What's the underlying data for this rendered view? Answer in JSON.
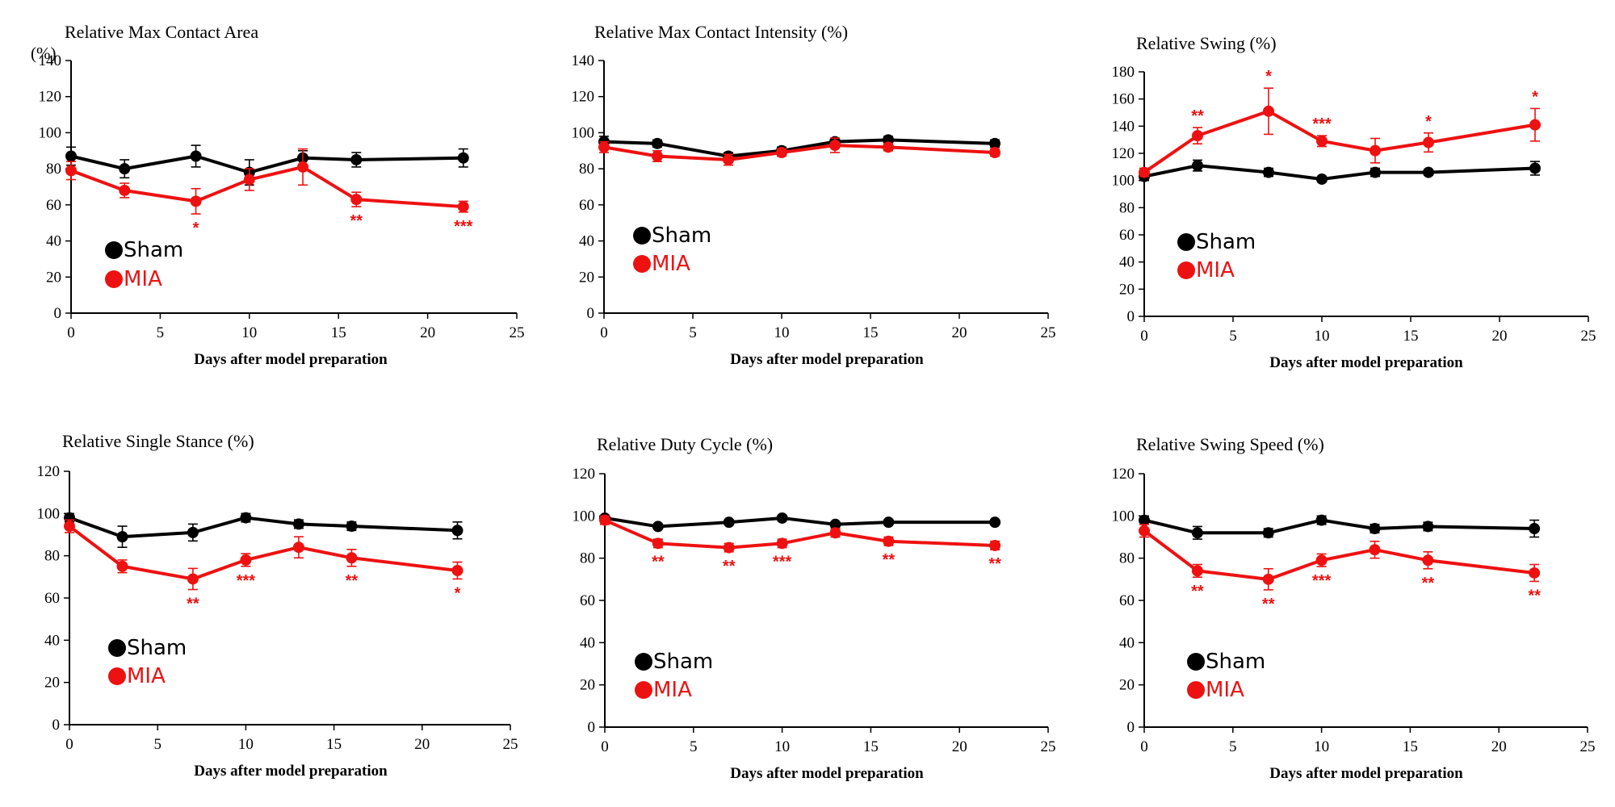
{
  "chart_data": [
    {
      "type": "line",
      "title": "Relative Max Contact Area",
      "ylabel": "(%)",
      "xlabel": "Days after model preparation",
      "xlim": [
        0,
        25
      ],
      "xticks": [
        0,
        5,
        10,
        15,
        20,
        25
      ],
      "ylim": [
        0,
        140
      ],
      "yticks": [
        0,
        20,
        40,
        60,
        80,
        100,
        120,
        140
      ],
      "x": [
        0,
        3,
        7,
        10,
        13,
        16,
        22
      ],
      "series": [
        {
          "name": "Sham",
          "color": "#000000",
          "values": [
            87,
            80,
            87,
            78,
            86,
            85,
            86
          ],
          "errors": [
            5,
            5,
            6,
            7,
            4,
            4,
            5
          ]
        },
        {
          "name": "MIA",
          "color": "#ee1111",
          "values": [
            79,
            68,
            62,
            74,
            81,
            63,
            59
          ],
          "errors": [
            5,
            4,
            7,
            6,
            10,
            4,
            3
          ],
          "significance": [
            "",
            "",
            "*",
            "",
            "",
            "**",
            "***"
          ]
        }
      ],
      "legend_position": "bottom-left"
    },
    {
      "type": "line",
      "title": "Relative Max Contact Intensity (%)",
      "xlabel": "Days after model preparation",
      "xlim": [
        0,
        25
      ],
      "xticks": [
        0,
        5,
        10,
        15,
        20,
        25
      ],
      "ylim": [
        0,
        140
      ],
      "yticks": [
        0,
        20,
        40,
        60,
        80,
        100,
        120,
        140
      ],
      "x": [
        0,
        3,
        7,
        10,
        13,
        16,
        22
      ],
      "series": [
        {
          "name": "Sham",
          "color": "#000000",
          "values": [
            95,
            94,
            87,
            90,
            95,
            96,
            94
          ],
          "errors": [
            3,
            2,
            2,
            2,
            2,
            2,
            2
          ]
        },
        {
          "name": "MIA",
          "color": "#ee1111",
          "values": [
            92,
            87,
            85,
            89,
            93,
            92,
            89
          ],
          "errors": [
            3,
            3,
            3,
            2,
            4,
            2,
            2
          ],
          "significance": [
            "",
            "",
            "",
            "",
            "",
            "",
            ""
          ]
        }
      ],
      "legend_position": "bottom-left"
    },
    {
      "type": "line",
      "title": "Relative Swing (%)",
      "xlabel": "Days after model preparation",
      "xlim": [
        0,
        25
      ],
      "xticks": [
        0,
        5,
        10,
        15,
        20,
        25
      ],
      "ylim": [
        0,
        180
      ],
      "yticks": [
        0,
        20,
        40,
        60,
        80,
        100,
        120,
        140,
        160,
        180
      ],
      "x": [
        0,
        3,
        7,
        10,
        13,
        16,
        22
      ],
      "series": [
        {
          "name": "Sham",
          "color": "#000000",
          "values": [
            103,
            111,
            106,
            101,
            106,
            106,
            109
          ],
          "errors": [
            3,
            4,
            3,
            2,
            3,
            2,
            5
          ]
        },
        {
          "name": "MIA",
          "color": "#ee1111",
          "values": [
            106,
            133,
            151,
            129,
            122,
            128,
            141
          ],
          "errors": [
            3,
            6,
            17,
            4,
            9,
            7,
            12
          ],
          "significance": [
            "",
            "**",
            "*",
            "***",
            "",
            "*",
            "*"
          ]
        }
      ],
      "legend_position": "bottom-left"
    },
    {
      "type": "line",
      "title": "Relative Single Stance (%)",
      "xlabel": "Days after model preparation",
      "xlim": [
        0,
        25
      ],
      "xticks": [
        0,
        5,
        10,
        15,
        20,
        25
      ],
      "ylim": [
        0,
        120
      ],
      "yticks": [
        0,
        20,
        40,
        60,
        80,
        100,
        120
      ],
      "x": [
        0,
        3,
        7,
        10,
        13,
        16,
        22
      ],
      "series": [
        {
          "name": "Sham",
          "color": "#000000",
          "values": [
            98,
            89,
            91,
            98,
            95,
            94,
            92
          ],
          "errors": [
            2,
            5,
            4,
            2,
            2,
            2,
            4
          ]
        },
        {
          "name": "MIA",
          "color": "#ee1111",
          "values": [
            94,
            75,
            69,
            78,
            84,
            79,
            73
          ],
          "errors": [
            3,
            3,
            5,
            3,
            5,
            4,
            4
          ],
          "significance": [
            "",
            "",
            "**",
            "***",
            "",
            "**",
            "*"
          ]
        }
      ],
      "legend_position": "bottom-left"
    },
    {
      "type": "line",
      "title": "Relative Duty Cycle (%)",
      "xlabel": "Days after model preparation",
      "xlim": [
        0,
        25
      ],
      "xticks": [
        0,
        5,
        10,
        15,
        20,
        25
      ],
      "ylim": [
        0,
        120
      ],
      "yticks": [
        0,
        20,
        40,
        60,
        80,
        100,
        120
      ],
      "x": [
        0,
        3,
        7,
        10,
        13,
        16,
        22
      ],
      "series": [
        {
          "name": "Sham",
          "color": "#000000",
          "values": [
            99,
            95,
            97,
            99,
            96,
            97,
            97
          ],
          "errors": [
            1,
            1,
            1,
            1,
            1,
            1,
            1
          ]
        },
        {
          "name": "MIA",
          "color": "#ee1111",
          "values": [
            98,
            87,
            85,
            87,
            92,
            88,
            86
          ],
          "errors": [
            2,
            2,
            2,
            2,
            2,
            2,
            2
          ],
          "significance": [
            "",
            "**",
            "**",
            "***",
            "",
            "**",
            "**"
          ]
        }
      ],
      "legend_position": "bottom-left"
    },
    {
      "type": "line",
      "title": "Relative Swing Speed (%)",
      "xlabel": "Days after model preparation",
      "xlim": [
        0,
        25
      ],
      "xticks": [
        0,
        5,
        10,
        15,
        20,
        25
      ],
      "ylim": [
        0,
        120
      ],
      "yticks": [
        0,
        20,
        40,
        60,
        80,
        100,
        120
      ],
      "x": [
        0,
        3,
        7,
        10,
        13,
        16,
        22
      ],
      "series": [
        {
          "name": "Sham",
          "color": "#000000",
          "values": [
            98,
            92,
            92,
            98,
            94,
            95,
            94
          ],
          "errors": [
            2,
            3,
            2,
            2,
            2,
            2,
            4
          ]
        },
        {
          "name": "MIA",
          "color": "#ee1111",
          "values": [
            93,
            74,
            70,
            79,
            84,
            79,
            73
          ],
          "errors": [
            3,
            3,
            5,
            3,
            4,
            4,
            4
          ],
          "significance": [
            "",
            "**",
            "**",
            "***",
            "",
            "**",
            "**"
          ]
        }
      ],
      "legend_position": "bottom-left"
    }
  ]
}
